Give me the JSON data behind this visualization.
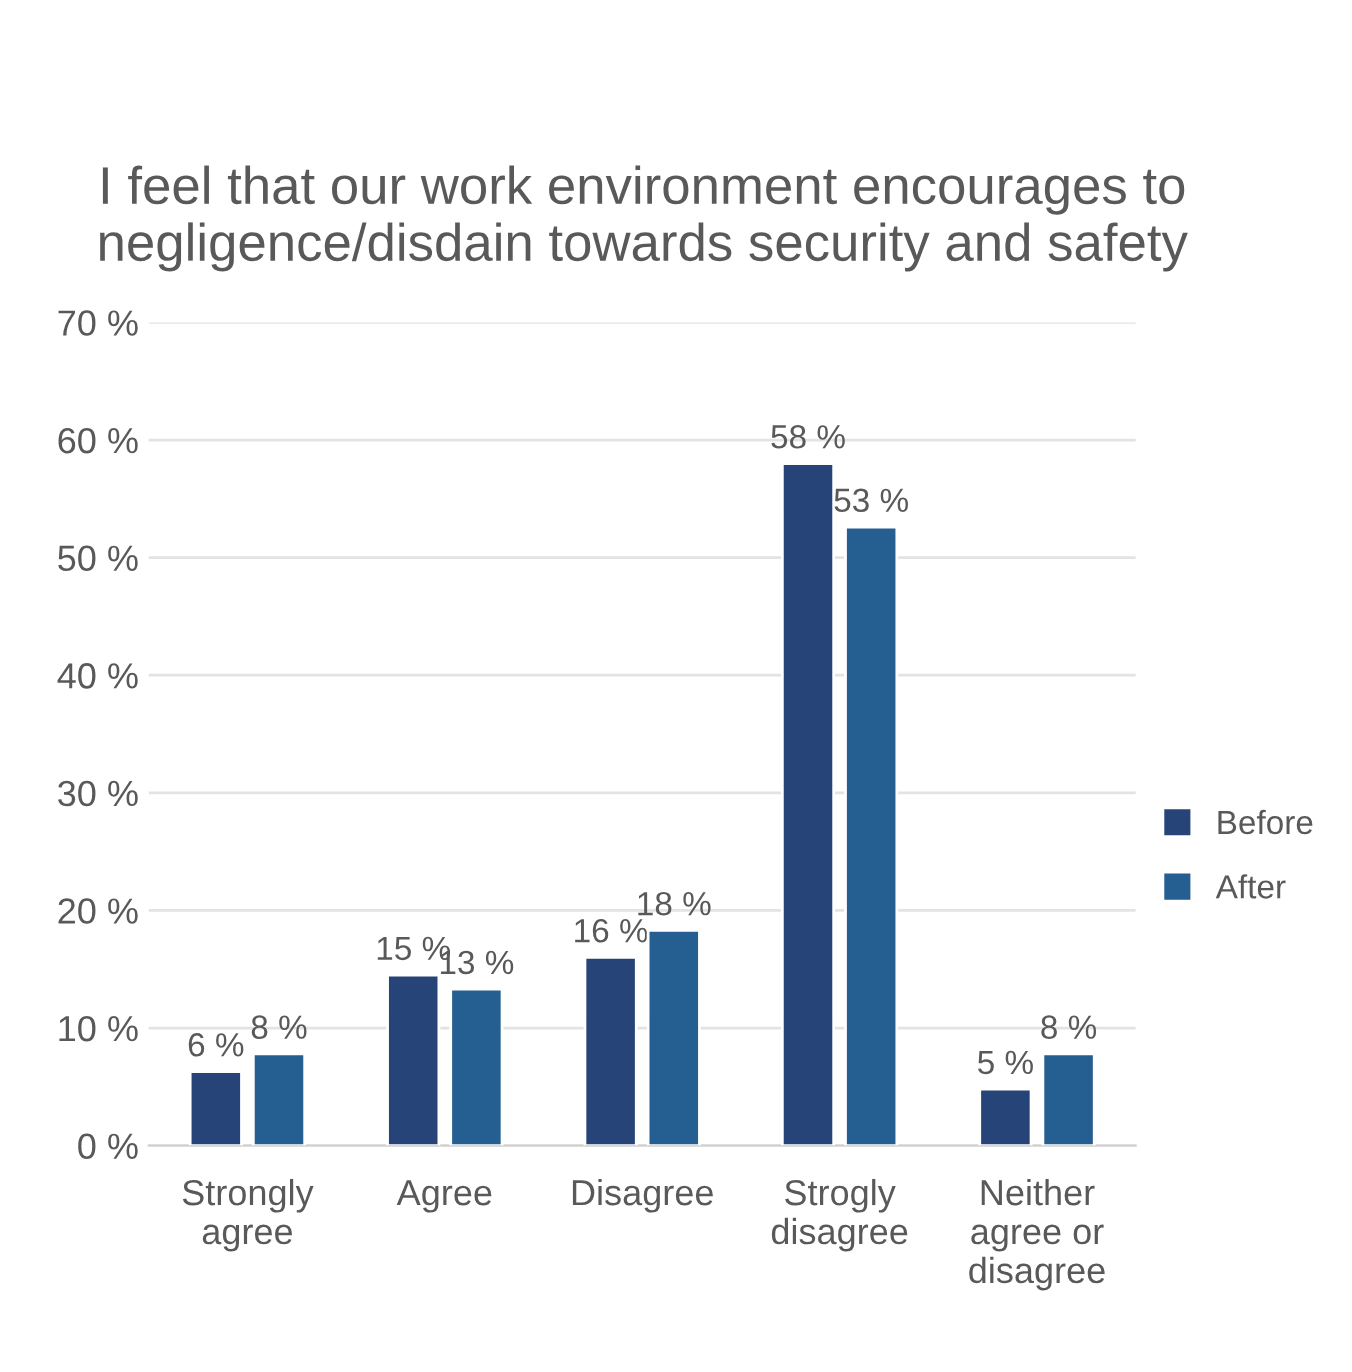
{
  "chart_data": {
    "type": "bar",
    "title": "I feel that our work environment encourages to negligence/disdain towards security and safety",
    "categories": [
      "Strongly\nagree",
      "Agree",
      "Disagree",
      "Strogly\ndisagree",
      "Neither\nagree or\ndisagree"
    ],
    "series": [
      {
        "name": "Before",
        "color": "#264478",
        "values": [
          6.3,
          14.5,
          16.0,
          58.0,
          4.8
        ],
        "value_labels": [
          "6 %",
          "15 %",
          "16 %",
          "58 %",
          "5 %"
        ]
      },
      {
        "name": "After",
        "color": "#255e91",
        "values": [
          7.8,
          13.3,
          18.3,
          52.6,
          7.8
        ],
        "value_labels": [
          "8 %",
          "13 %",
          "18 %",
          "53 %",
          "8 %"
        ]
      }
    ],
    "ylim": [
      0,
      70
    ],
    "yticks": [
      {
        "value": 0,
        "label": "0 %"
      },
      {
        "value": 10,
        "label": "10 %"
      },
      {
        "value": 20,
        "label": "20 %"
      },
      {
        "value": 30,
        "label": "30 %"
      },
      {
        "value": 40,
        "label": "40 %"
      },
      {
        "value": 50,
        "label": "50 %"
      },
      {
        "value": 60,
        "label": "60 %"
      },
      {
        "value": 70,
        "label": "70 %"
      }
    ],
    "grid": "y",
    "legend": "right"
  }
}
